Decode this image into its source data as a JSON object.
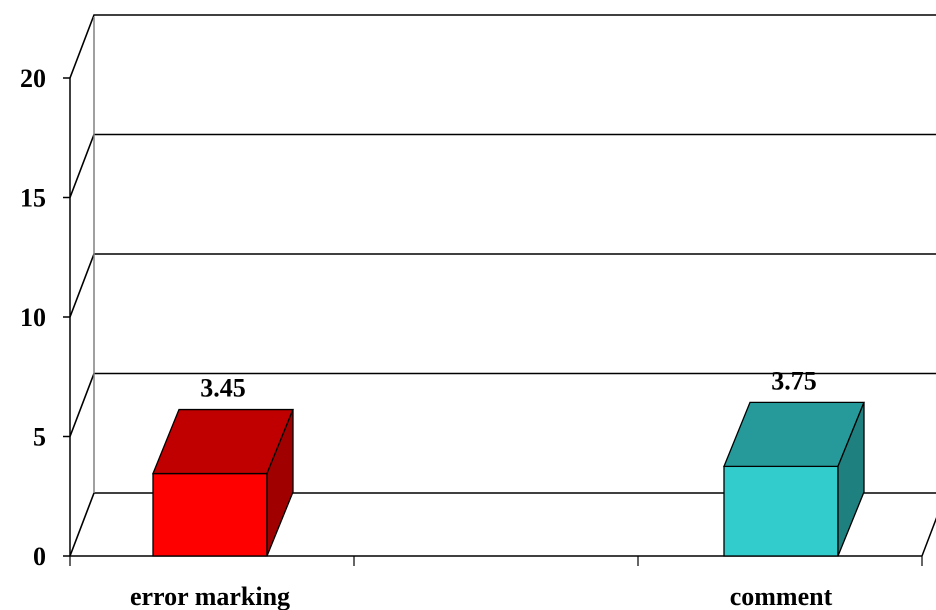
{
  "chart_data": {
    "type": "bar",
    "style": "3d-column",
    "categories": [
      "error marking",
      "comment"
    ],
    "values": [
      3.45,
      3.75
    ],
    "data_labels": [
      "3.45",
      "3.75"
    ],
    "title": "",
    "xlabel": "",
    "ylabel": "",
    "ylim": [
      0,
      20
    ],
    "yticks": [
      0,
      5,
      10,
      15,
      20
    ],
    "ytick_labels": [
      "0",
      "5",
      "10",
      "15",
      "20"
    ],
    "grid": true,
    "legend": "none",
    "bar_colors": [
      {
        "front": "#ff0000",
        "top": "#c00000",
        "side": "#a00000"
      },
      {
        "front": "#33cccc",
        "top": "#269a9a",
        "side": "#1f8080"
      }
    ],
    "gridline_color": "#000000",
    "background": "#ffffff"
  }
}
